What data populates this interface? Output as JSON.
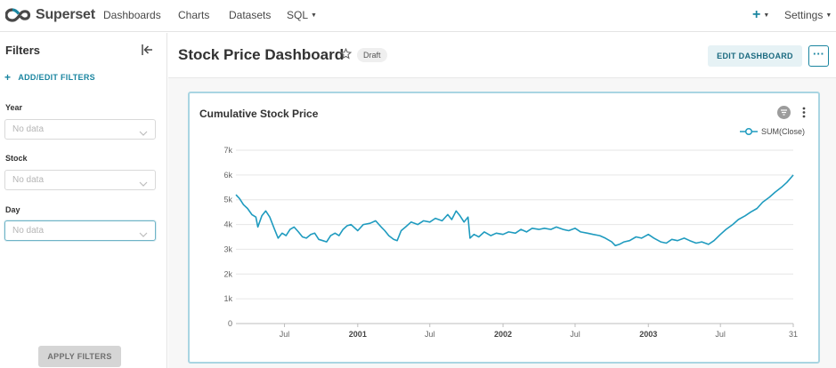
{
  "app": {
    "logo_text": "Superset",
    "brand_color": "#1a85a0"
  },
  "nav": {
    "items": [
      {
        "label": "Dashboards"
      },
      {
        "label": "Charts"
      },
      {
        "label": "Datasets"
      },
      {
        "label": "SQL"
      }
    ],
    "plus_label": "+",
    "settings_label": "Settings"
  },
  "sidebar": {
    "title": "Filters",
    "add_edit_label": "ADD/EDIT FILTERS",
    "filters": [
      {
        "label": "Year",
        "placeholder": "No data"
      },
      {
        "label": "Stock",
        "placeholder": "No data"
      },
      {
        "label": "Day",
        "placeholder": "No data"
      }
    ],
    "apply_label": "APPLY FILTERS"
  },
  "header": {
    "title": "Stock Price Dashboard",
    "badge": "Draft",
    "edit_label": "EDIT DASHBOARD",
    "more_label": "···"
  },
  "chart": {
    "title": "Cumulative Stock Price",
    "line_color": "#1f9bbf"
  },
  "chart_data": {
    "type": "line",
    "title": "Cumulative Stock Price",
    "xlabel": "",
    "ylabel": "",
    "legend": {
      "entries": [
        "SUM(Close)"
      ],
      "position": "top-right"
    },
    "grid": true,
    "ylim": [
      0,
      7000
    ],
    "y_ticks": [
      "0",
      "1k",
      "2k",
      "3k",
      "4k",
      "5k",
      "6k",
      "7k"
    ],
    "xlim": [
      "2000-03-01",
      "2003-12-31"
    ],
    "x_ticks": [
      {
        "date": "2000-07-01",
        "label": "Jul"
      },
      {
        "date": "2001-01-01",
        "label": "2001"
      },
      {
        "date": "2001-07-01",
        "label": "Jul"
      },
      {
        "date": "2002-01-01",
        "label": "2002"
      },
      {
        "date": "2002-07-01",
        "label": "Jul"
      },
      {
        "date": "2003-01-01",
        "label": "2003"
      },
      {
        "date": "2003-07-01",
        "label": "Jul"
      },
      {
        "date": "2003-12-31",
        "label": "31"
      }
    ],
    "series": [
      {
        "name": "SUM(Close)",
        "points": [
          [
            "2000-03-01",
            5200
          ],
          [
            "2000-03-10",
            5050
          ],
          [
            "2000-03-20",
            4800
          ],
          [
            "2000-03-30",
            4650
          ],
          [
            "2000-04-10",
            4400
          ],
          [
            "2000-04-20",
            4300
          ],
          [
            "2000-04-25",
            3900
          ],
          [
            "2000-05-05",
            4350
          ],
          [
            "2000-05-15",
            4550
          ],
          [
            "2000-05-25",
            4300
          ],
          [
            "2000-06-05",
            3850
          ],
          [
            "2000-06-15",
            3450
          ],
          [
            "2000-06-25",
            3650
          ],
          [
            "2000-07-05",
            3550
          ],
          [
            "2000-07-15",
            3800
          ],
          [
            "2000-07-25",
            3900
          ],
          [
            "2000-08-05",
            3700
          ],
          [
            "2000-08-15",
            3500
          ],
          [
            "2000-08-25",
            3450
          ],
          [
            "2000-09-05",
            3600
          ],
          [
            "2000-09-15",
            3650
          ],
          [
            "2000-09-25",
            3400
          ],
          [
            "2000-10-05",
            3350
          ],
          [
            "2000-10-15",
            3300
          ],
          [
            "2000-10-25",
            3550
          ],
          [
            "2000-11-05",
            3650
          ],
          [
            "2000-11-15",
            3550
          ],
          [
            "2000-11-25",
            3800
          ],
          [
            "2000-12-05",
            3950
          ],
          [
            "2000-12-15",
            4000
          ],
          [
            "2001-01-01",
            3750
          ],
          [
            "2001-01-15",
            4000
          ],
          [
            "2001-02-01",
            4050
          ],
          [
            "2001-02-15",
            4150
          ],
          [
            "2001-03-01",
            3900
          ],
          [
            "2001-03-10",
            3750
          ],
          [
            "2001-03-20",
            3550
          ],
          [
            "2001-04-01",
            3400
          ],
          [
            "2001-04-10",
            3350
          ],
          [
            "2001-04-20",
            3750
          ],
          [
            "2001-05-01",
            3900
          ],
          [
            "2001-05-15",
            4100
          ],
          [
            "2001-06-01",
            4000
          ],
          [
            "2001-06-15",
            4150
          ],
          [
            "2001-07-01",
            4100
          ],
          [
            "2001-07-15",
            4250
          ],
          [
            "2001-08-01",
            4150
          ],
          [
            "2001-08-15",
            4400
          ],
          [
            "2001-08-25",
            4200
          ],
          [
            "2001-09-05",
            4550
          ],
          [
            "2001-09-15",
            4350
          ],
          [
            "2001-09-25",
            4100
          ],
          [
            "2001-10-05",
            4300
          ],
          [
            "2001-10-10",
            3450
          ],
          [
            "2001-10-20",
            3600
          ],
          [
            "2001-11-01",
            3500
          ],
          [
            "2001-11-15",
            3700
          ],
          [
            "2001-12-01",
            3550
          ],
          [
            "2001-12-15",
            3650
          ],
          [
            "2002-01-01",
            3600
          ],
          [
            "2002-01-15",
            3700
          ],
          [
            "2002-02-01",
            3650
          ],
          [
            "2002-02-15",
            3800
          ],
          [
            "2002-03-01",
            3700
          ],
          [
            "2002-03-15",
            3850
          ],
          [
            "2002-04-01",
            3800
          ],
          [
            "2002-04-15",
            3850
          ],
          [
            "2002-05-01",
            3800
          ],
          [
            "2002-05-15",
            3900
          ],
          [
            "2002-06-01",
            3800
          ],
          [
            "2002-06-15",
            3750
          ],
          [
            "2002-07-01",
            3850
          ],
          [
            "2002-07-15",
            3700
          ],
          [
            "2002-08-01",
            3650
          ],
          [
            "2002-08-15",
            3600
          ],
          [
            "2002-09-01",
            3550
          ],
          [
            "2002-09-15",
            3450
          ],
          [
            "2002-10-01",
            3300
          ],
          [
            "2002-10-10",
            3150
          ],
          [
            "2002-10-20",
            3200
          ],
          [
            "2002-11-01",
            3300
          ],
          [
            "2002-11-15",
            3350
          ],
          [
            "2002-12-01",
            3500
          ],
          [
            "2002-12-15",
            3450
          ],
          [
            "2003-01-01",
            3600
          ],
          [
            "2003-01-15",
            3450
          ],
          [
            "2003-02-01",
            3300
          ],
          [
            "2003-02-15",
            3250
          ],
          [
            "2003-03-01",
            3400
          ],
          [
            "2003-03-15",
            3350
          ],
          [
            "2003-04-01",
            3450
          ],
          [
            "2003-04-15",
            3350
          ],
          [
            "2003-05-01",
            3250
          ],
          [
            "2003-05-15",
            3300
          ],
          [
            "2003-06-01",
            3200
          ],
          [
            "2003-06-15",
            3350
          ],
          [
            "2003-07-01",
            3600
          ],
          [
            "2003-07-15",
            3800
          ],
          [
            "2003-08-01",
            4000
          ],
          [
            "2003-08-15",
            4200
          ],
          [
            "2003-09-01",
            4350
          ],
          [
            "2003-09-15",
            4500
          ],
          [
            "2003-10-01",
            4650
          ],
          [
            "2003-10-15",
            4900
          ],
          [
            "2003-11-01",
            5100
          ],
          [
            "2003-11-15",
            5300
          ],
          [
            "2003-12-01",
            5500
          ],
          [
            "2003-12-15",
            5700
          ],
          [
            "2003-12-31",
            6000
          ]
        ]
      }
    ]
  }
}
